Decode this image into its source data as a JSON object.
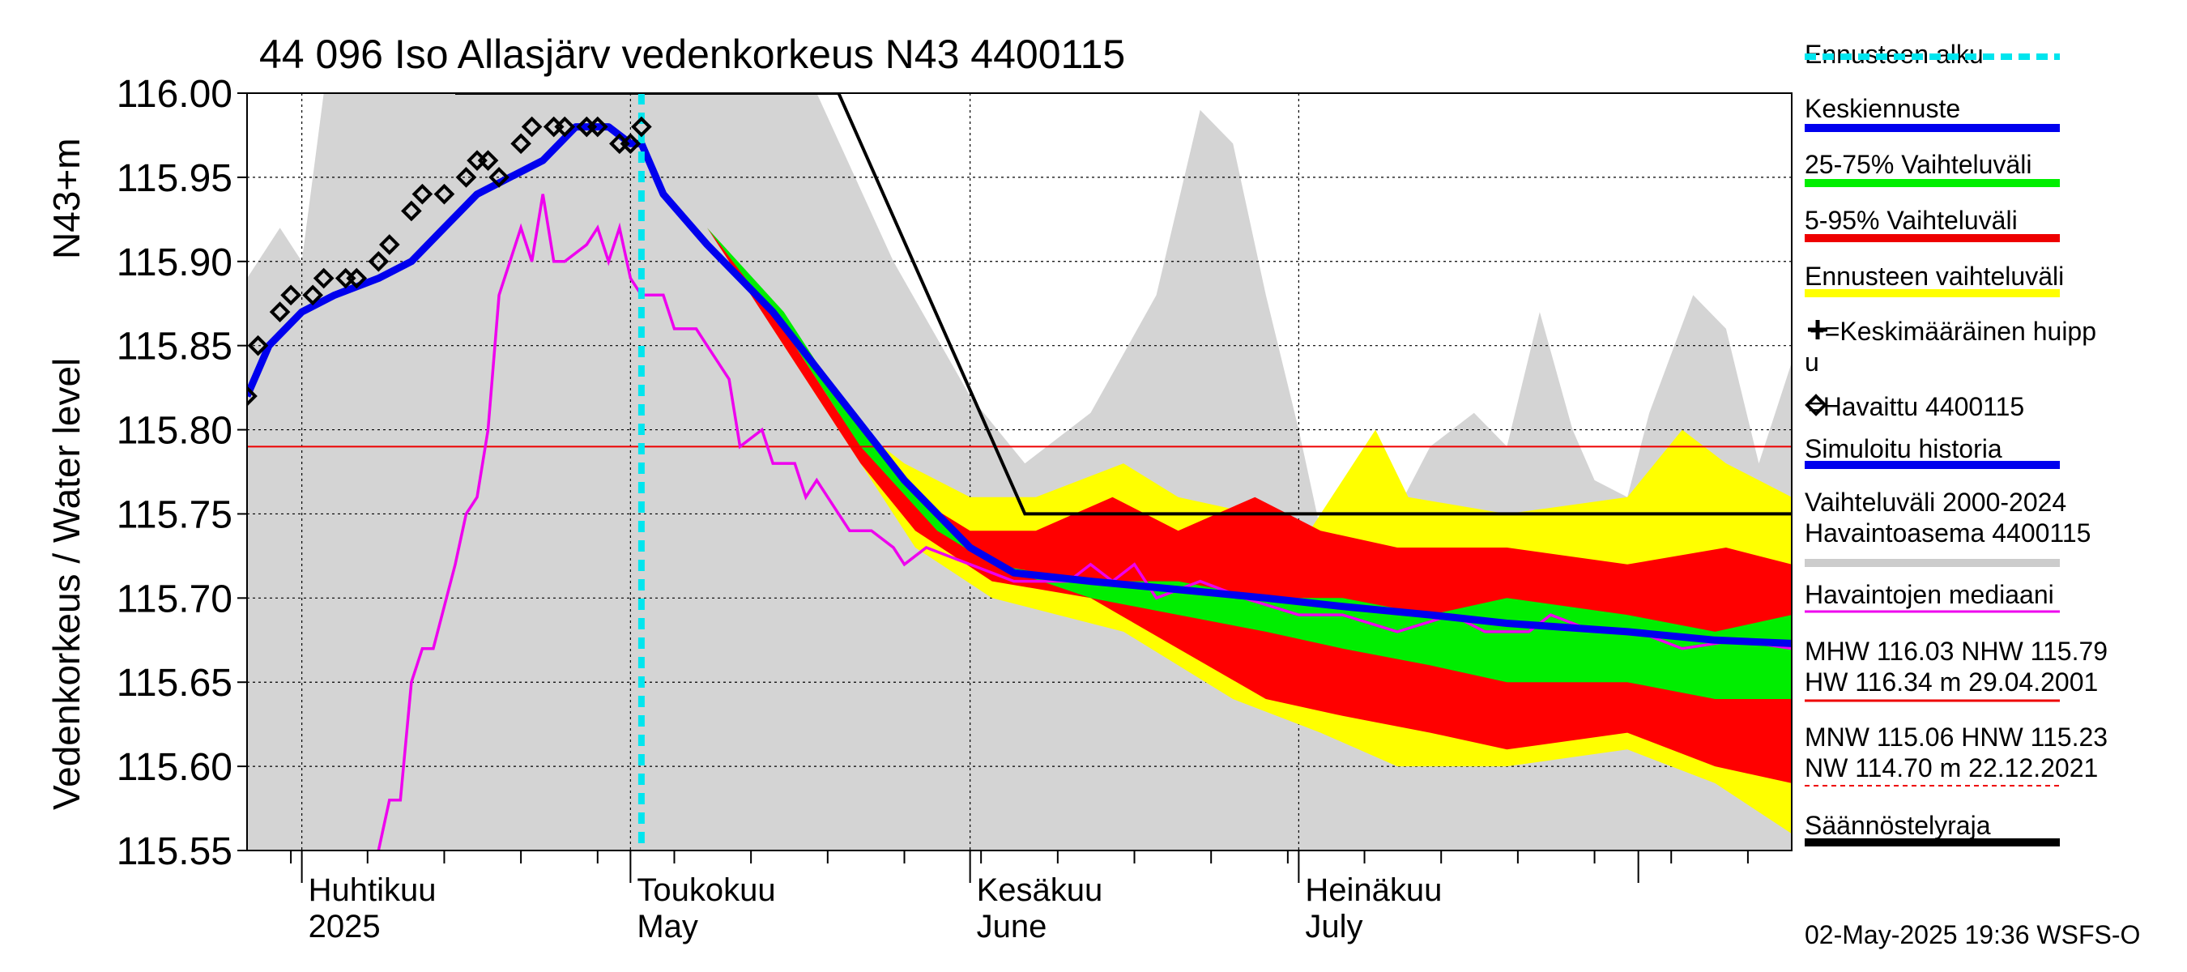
{
  "chart_data": {
    "type": "area",
    "title": "44 096 Iso Allasjärv vedenkorkeus N43 4400115",
    "ylabel": "Vedenkorkeus / Water level",
    "ylabel_units": "N43+m",
    "ylim": [
      115.55,
      116.0
    ],
    "yticks": [
      "115.55",
      "115.60",
      "115.65",
      "115.70",
      "115.75",
      "115.80",
      "115.85",
      "115.90",
      "115.95",
      "116.00"
    ],
    "x_range": [
      "2025-03-27",
      "2025-08-15"
    ],
    "months": [
      {
        "label_fi": "Huhtikuu",
        "label_en": "2025",
        "date": "2025-04-01"
      },
      {
        "label_fi": "Toukokuu",
        "label_en": "May",
        "date": "2025-05-01"
      },
      {
        "label_fi": "Kesäkuu",
        "label_en": "June",
        "date": "2025-06-01"
      },
      {
        "label_fi": "Heinäkuu",
        "label_en": "July",
        "date": "2025-07-01"
      }
    ],
    "forecast_start": "2025-05-02",
    "hline_red": 115.79,
    "hline_black": 115.75,
    "black_line": [
      [
        "2025-04-15",
        116.0
      ],
      [
        "2025-05-20",
        116.0
      ],
      [
        "2025-06-06",
        115.75
      ],
      [
        "2025-08-15",
        115.75
      ]
    ],
    "historical_range": {
      "upper": [
        [
          "2025-03-27",
          115.89
        ],
        [
          "2025-03-30",
          115.92
        ],
        [
          "2025-04-01",
          115.9
        ],
        [
          "2025-04-03",
          116.0
        ],
        [
          "2025-05-18",
          116.0
        ],
        [
          "2025-05-25",
          115.9
        ],
        [
          "2025-06-01",
          115.82
        ],
        [
          "2025-06-06",
          115.78
        ],
        [
          "2025-06-12",
          115.81
        ],
        [
          "2025-06-18",
          115.88
        ],
        [
          "2025-06-22",
          115.99
        ],
        [
          "2025-06-25",
          115.97
        ],
        [
          "2025-06-28",
          115.88
        ],
        [
          "2025-07-01",
          115.8
        ],
        [
          "2025-07-03",
          115.74
        ],
        [
          "2025-07-05",
          115.76
        ],
        [
          "2025-07-09",
          115.74
        ],
        [
          "2025-07-13",
          115.79
        ],
        [
          "2025-07-17",
          115.81
        ],
        [
          "2025-07-20",
          115.79
        ],
        [
          "2025-07-23",
          115.87
        ],
        [
          "2025-07-26",
          115.8
        ],
        [
          "2025-07-28",
          115.77
        ],
        [
          "2025-07-31",
          115.76
        ],
        [
          "2025-08-02",
          115.81
        ],
        [
          "2025-08-06",
          115.88
        ],
        [
          "2025-08-09",
          115.86
        ],
        [
          "2025-08-12",
          115.78
        ],
        [
          "2025-08-15",
          115.84
        ]
      ],
      "lower": [
        [
          "2025-03-27",
          115.55
        ],
        [
          "2025-08-15",
          115.55
        ]
      ]
    },
    "forecast_range": {
      "upper": [
        [
          "2025-05-02",
          115.97
        ],
        [
          "2025-05-08",
          115.92
        ],
        [
          "2025-05-14",
          115.86
        ],
        [
          "2025-05-20",
          115.81
        ],
        [
          "2025-05-26",
          115.78
        ],
        [
          "2025-06-01",
          115.76
        ],
        [
          "2025-06-07",
          115.76
        ],
        [
          "2025-06-15",
          115.78
        ],
        [
          "2025-06-20",
          115.76
        ],
        [
          "2025-06-27",
          115.75
        ],
        [
          "2025-07-02",
          115.74
        ],
        [
          "2025-07-06",
          115.78
        ],
        [
          "2025-07-08",
          115.8
        ],
        [
          "2025-07-11",
          115.76
        ],
        [
          "2025-07-20",
          115.75
        ],
        [
          "2025-07-31",
          115.76
        ],
        [
          "2025-08-05",
          115.8
        ],
        [
          "2025-08-09",
          115.78
        ],
        [
          "2025-08-15",
          115.76
        ]
      ],
      "lower": [
        [
          "2025-05-02",
          115.97
        ],
        [
          "2025-05-08",
          115.92
        ],
        [
          "2025-05-15",
          115.85
        ],
        [
          "2025-05-22",
          115.78
        ],
        [
          "2025-05-27",
          115.73
        ],
        [
          "2025-06-03",
          115.7
        ],
        [
          "2025-06-15",
          115.68
        ],
        [
          "2025-06-25",
          115.64
        ],
        [
          "2025-07-03",
          115.62
        ],
        [
          "2025-07-10",
          115.6
        ],
        [
          "2025-07-20",
          115.6
        ],
        [
          "2025-07-31",
          115.61
        ],
        [
          "2025-08-08",
          115.59
        ],
        [
          "2025-08-15",
          115.56
        ]
      ]
    },
    "p5_95": {
      "upper": [
        [
          "2025-05-02",
          115.97
        ],
        [
          "2025-05-08",
          115.92
        ],
        [
          "2025-05-14",
          115.87
        ],
        [
          "2025-05-20",
          115.81
        ],
        [
          "2025-05-27",
          115.76
        ],
        [
          "2025-06-01",
          115.74
        ],
        [
          "2025-06-07",
          115.74
        ],
        [
          "2025-06-14",
          115.76
        ],
        [
          "2025-06-20",
          115.74
        ],
        [
          "2025-06-27",
          115.76
        ],
        [
          "2025-07-03",
          115.74
        ],
        [
          "2025-07-10",
          115.73
        ],
        [
          "2025-07-20",
          115.73
        ],
        [
          "2025-07-31",
          115.72
        ],
        [
          "2025-08-09",
          115.73
        ],
        [
          "2025-08-15",
          115.72
        ]
      ],
      "lower": [
        [
          "2025-05-02",
          115.97
        ],
        [
          "2025-05-08",
          115.92
        ],
        [
          "2025-05-15",
          115.85
        ],
        [
          "2025-05-22",
          115.78
        ],
        [
          "2025-05-27",
          115.74
        ],
        [
          "2025-06-03",
          115.71
        ],
        [
          "2025-06-12",
          115.7
        ],
        [
          "2025-06-20",
          115.67
        ],
        [
          "2025-06-28",
          115.64
        ],
        [
          "2025-07-05",
          115.63
        ],
        [
          "2025-07-13",
          115.62
        ],
        [
          "2025-07-20",
          115.61
        ],
        [
          "2025-07-31",
          115.62
        ],
        [
          "2025-08-08",
          115.6
        ],
        [
          "2025-08-15",
          115.59
        ]
      ]
    },
    "p25_75": {
      "upper": [
        [
          "2025-05-02",
          115.97
        ],
        [
          "2025-05-08",
          115.92
        ],
        [
          "2025-05-15",
          115.87
        ],
        [
          "2025-05-22",
          115.8
        ],
        [
          "2025-05-29",
          115.75
        ],
        [
          "2025-06-03",
          115.72
        ],
        [
          "2025-06-12",
          115.71
        ],
        [
          "2025-06-20",
          115.71
        ],
        [
          "2025-06-28",
          115.7
        ],
        [
          "2025-07-05",
          115.7
        ],
        [
          "2025-07-13",
          115.69
        ],
        [
          "2025-07-20",
          115.7
        ],
        [
          "2025-07-31",
          115.69
        ],
        [
          "2025-08-08",
          115.68
        ],
        [
          "2025-08-15",
          115.69
        ]
      ],
      "lower": [
        [
          "2025-05-02",
          115.97
        ],
        [
          "2025-05-08",
          115.92
        ],
        [
          "2025-05-15",
          115.86
        ],
        [
          "2025-05-22",
          115.79
        ],
        [
          "2025-05-29",
          115.74
        ],
        [
          "2025-06-03",
          115.72
        ],
        [
          "2025-06-12",
          115.7
        ],
        [
          "2025-06-20",
          115.69
        ],
        [
          "2025-06-28",
          115.68
        ],
        [
          "2025-07-05",
          115.67
        ],
        [
          "2025-07-13",
          115.66
        ],
        [
          "2025-07-20",
          115.65
        ],
        [
          "2025-07-31",
          115.65
        ],
        [
          "2025-08-08",
          115.64
        ],
        [
          "2025-08-15",
          115.64
        ]
      ]
    },
    "series": [
      {
        "name": "Keskiennuste",
        "color": "#0000ee",
        "points": [
          [
            "2025-03-27",
            115.82
          ],
          [
            "2025-03-29",
            115.85
          ],
          [
            "2025-04-01",
            115.87
          ],
          [
            "2025-04-04",
            115.88
          ],
          [
            "2025-04-08",
            115.89
          ],
          [
            "2025-04-11",
            115.9
          ],
          [
            "2025-04-14",
            115.92
          ],
          [
            "2025-04-17",
            115.94
          ],
          [
            "2025-04-20",
            115.95
          ],
          [
            "2025-04-23",
            115.96
          ],
          [
            "2025-04-26",
            115.98
          ],
          [
            "2025-04-29",
            115.98
          ],
          [
            "2025-05-01",
            115.97
          ],
          [
            "2025-05-02",
            115.97
          ],
          [
            "2025-05-04",
            115.94
          ],
          [
            "2025-05-08",
            115.91
          ],
          [
            "2025-05-14",
            115.87
          ],
          [
            "2025-05-20",
            115.82
          ],
          [
            "2025-05-26",
            115.77
          ],
          [
            "2025-06-01",
            115.73
          ],
          [
            "2025-06-05",
            115.715
          ],
          [
            "2025-06-12",
            115.71
          ],
          [
            "2025-06-20",
            115.705
          ],
          [
            "2025-06-28",
            115.7
          ],
          [
            "2025-07-05",
            115.695
          ],
          [
            "2025-07-13",
            115.69
          ],
          [
            "2025-07-20",
            115.685
          ],
          [
            "2025-07-31",
            115.68
          ],
          [
            "2025-08-08",
            115.675
          ],
          [
            "2025-08-15",
            115.673
          ]
        ]
      },
      {
        "name": "Havaittu 4400115",
        "color": "#000000",
        "points": [
          [
            "2025-03-27",
            115.82
          ],
          [
            "2025-03-28",
            115.85
          ],
          [
            "2025-03-30",
            115.87
          ],
          [
            "2025-03-31",
            115.88
          ],
          [
            "2025-04-02",
            115.88
          ],
          [
            "2025-04-03",
            115.89
          ],
          [
            "2025-04-05",
            115.89
          ],
          [
            "2025-04-06",
            115.89
          ],
          [
            "2025-04-08",
            115.9
          ],
          [
            "2025-04-09",
            115.91
          ],
          [
            "2025-04-11",
            115.93
          ],
          [
            "2025-04-12",
            115.94
          ],
          [
            "2025-04-14",
            115.94
          ],
          [
            "2025-04-16",
            115.95
          ],
          [
            "2025-04-17",
            115.96
          ],
          [
            "2025-04-18",
            115.96
          ],
          [
            "2025-04-19",
            115.95
          ],
          [
            "2025-04-21",
            115.97
          ],
          [
            "2025-04-22",
            115.98
          ],
          [
            "2025-04-24",
            115.98
          ],
          [
            "2025-04-25",
            115.98
          ],
          [
            "2025-04-27",
            115.98
          ],
          [
            "2025-04-28",
            115.98
          ],
          [
            "2025-04-30",
            115.97
          ],
          [
            "2025-05-01",
            115.97
          ],
          [
            "2025-05-02",
            115.98
          ]
        ]
      },
      {
        "name": "Havaintojen mediaani",
        "color": "#ee00ee",
        "points": [
          [
            "2025-04-08",
            115.55
          ],
          [
            "2025-04-09",
            115.58
          ],
          [
            "2025-04-10",
            115.58
          ],
          [
            "2025-04-11",
            115.65
          ],
          [
            "2025-04-12",
            115.67
          ],
          [
            "2025-04-13",
            115.67
          ],
          [
            "2025-04-15",
            115.72
          ],
          [
            "2025-04-16",
            115.75
          ],
          [
            "2025-04-17",
            115.76
          ],
          [
            "2025-04-18",
            115.8
          ],
          [
            "2025-04-19",
            115.88
          ],
          [
            "2025-04-21",
            115.92
          ],
          [
            "2025-04-22",
            115.9
          ],
          [
            "2025-04-23",
            115.94
          ],
          [
            "2025-04-24",
            115.9
          ],
          [
            "2025-04-25",
            115.9
          ],
          [
            "2025-04-27",
            115.91
          ],
          [
            "2025-04-28",
            115.92
          ],
          [
            "2025-04-29",
            115.9
          ],
          [
            "2025-04-30",
            115.92
          ],
          [
            "2025-05-01",
            115.89
          ],
          [
            "2025-05-02",
            115.88
          ],
          [
            "2025-05-04",
            115.88
          ],
          [
            "2025-05-05",
            115.86
          ],
          [
            "2025-05-07",
            115.86
          ],
          [
            "2025-05-08",
            115.85
          ],
          [
            "2025-05-10",
            115.83
          ],
          [
            "2025-05-11",
            115.79
          ],
          [
            "2025-05-13",
            115.8
          ],
          [
            "2025-05-14",
            115.78
          ],
          [
            "2025-05-16",
            115.78
          ],
          [
            "2025-05-17",
            115.76
          ],
          [
            "2025-05-18",
            115.77
          ],
          [
            "2025-05-19",
            115.76
          ],
          [
            "2025-05-21",
            115.74
          ],
          [
            "2025-05-23",
            115.74
          ],
          [
            "2025-05-25",
            115.73
          ],
          [
            "2025-05-26",
            115.72
          ],
          [
            "2025-05-28",
            115.73
          ],
          [
            "2025-06-01",
            115.72
          ],
          [
            "2025-06-05",
            115.71
          ],
          [
            "2025-06-10",
            115.71
          ],
          [
            "2025-06-12",
            115.72
          ],
          [
            "2025-06-14",
            115.71
          ],
          [
            "2025-06-16",
            115.72
          ],
          [
            "2025-06-18",
            115.7
          ],
          [
            "2025-06-22",
            115.71
          ],
          [
            "2025-06-26",
            115.7
          ],
          [
            "2025-07-01",
            115.69
          ],
          [
            "2025-07-05",
            115.69
          ],
          [
            "2025-07-10",
            115.68
          ],
          [
            "2025-07-15",
            115.69
          ],
          [
            "2025-07-18",
            115.68
          ],
          [
            "2025-07-22",
            115.68
          ],
          [
            "2025-07-24",
            115.69
          ],
          [
            "2025-07-28",
            115.68
          ],
          [
            "2025-08-01",
            115.68
          ],
          [
            "2025-08-05",
            115.67
          ],
          [
            "2025-08-10",
            115.675
          ],
          [
            "2025-08-15",
            115.67
          ]
        ]
      }
    ],
    "legend": [
      {
        "label": "Ennusteen alku",
        "color": "#00e5ee",
        "style": "dashed"
      },
      {
        "label": "Keskiennuste",
        "color": "#0000ee",
        "style": "line"
      },
      {
        "label": "25-75% Vaihteluväli",
        "color": "#00ee00",
        "style": "line"
      },
      {
        "label": "5-95% Vaihteluväli",
        "color": "#ee0000",
        "style": "line"
      },
      {
        "label": "Ennusteen vaihteluväli",
        "color": "#ffff00",
        "style": "line"
      },
      {
        "label": "+=Keskimääräinen huipp",
        "label2": "u",
        "color": "#000000",
        "style": "none"
      },
      {
        "label": "=Havaittu 4400115",
        "color": "#000000",
        "style": "none"
      },
      {
        "label": "Simuloitu historia",
        "color": "#0000ee",
        "style": "line"
      },
      {
        "label": "Vaihteluväli 2000-2024",
        "label2": " Havaintoasema 4400115",
        "color": "#cccccc",
        "style": "line"
      },
      {
        "label": "Havaintojen mediaani",
        "color": "#ee00ee",
        "style": "thin"
      },
      {
        "label": "MHW 116.03 NHW 115.79",
        "label2": "HW 116.34 m 29.04.2001",
        "color": "#ee0000",
        "style": "thin"
      },
      {
        "label": "MNW 115.06 HNW 115.23",
        "label2": "NW 114.70 m 22.12.2021",
        "color": "#ee0000",
        "style": "dashed-thin"
      },
      {
        "label": "Säännöstelyraja",
        "color": "#000000",
        "style": "line"
      }
    ],
    "footer": "02-May-2025 19:36 WSFS-O"
  }
}
